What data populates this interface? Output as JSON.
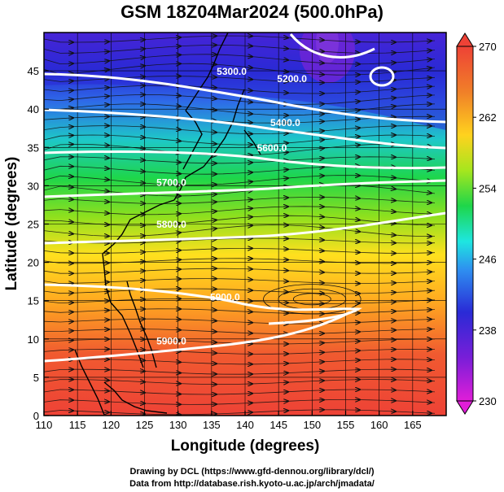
{
  "title": "GSM 18Z04Mar2024 (500.0hPa)",
  "credits": {
    "line1": "Drawing by DCL (https://www.gfd-dennou.org/library/dcl/)",
    "line2": "Data from http://database.rish.kyoto-u.ac.jp/arch/jmadata/"
  },
  "map": {
    "xlabel": "Longitude (degrees)",
    "ylabel": "Latitude  (degrees)",
    "lon_range": [
      110,
      170
    ],
    "lat_range": [
      0,
      50
    ],
    "lon_ticks": [
      "110",
      "115",
      "120",
      "125",
      "130",
      "135",
      "140",
      "145",
      "150",
      "155",
      "160",
      "165"
    ],
    "lat_ticks": [
      "0",
      "5",
      "10",
      "15",
      "20",
      "25",
      "30",
      "35",
      "40",
      "45"
    ],
    "contour_labels": [
      {
        "text": "5200.0",
        "lon": 147,
        "lat": 43.5
      },
      {
        "text": "5300.0",
        "lon": 138,
        "lat": 44.5
      },
      {
        "text": "5400.0",
        "lon": 146,
        "lat": 37.8
      },
      {
        "text": "5600.0",
        "lon": 144,
        "lat": 34.5
      },
      {
        "text": "5700.0",
        "lon": 129,
        "lat": 30.0
      },
      {
        "text": "5800.0",
        "lon": 129,
        "lat": 24.5
      },
      {
        "text": "5900.0",
        "lon": 137,
        "lat": 15.0
      },
      {
        "text": "5900.0",
        "lon": 129,
        "lat": 9.3
      }
    ]
  },
  "colorbar": {
    "ticks": [
      "270",
      "262",
      "254",
      "246",
      "238",
      "230"
    ],
    "range": [
      230,
      270
    ],
    "colors": [
      "#e01ed8",
      "#2a2ad6",
      "#2e8ff0",
      "#1ee6e0",
      "#1ed64a",
      "#a6e61e",
      "#ffd21e",
      "#f08028",
      "#ee4236"
    ]
  }
}
